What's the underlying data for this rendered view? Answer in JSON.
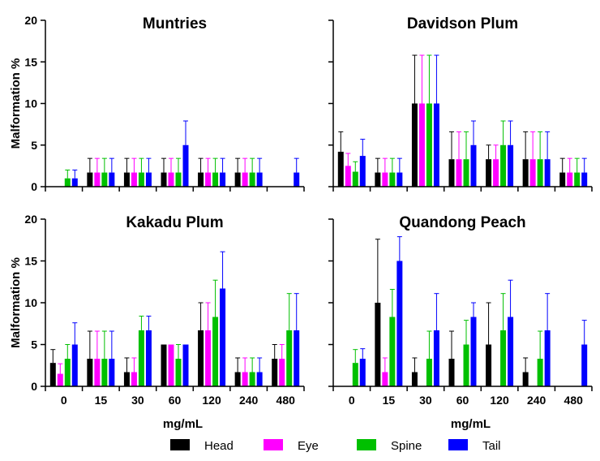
{
  "chart_data": {
    "type": "bar",
    "ylabel": "Malformation %",
    "xlabel": "mg/mL",
    "categories": [
      "0",
      "15",
      "30",
      "60",
      "120",
      "240",
      "480"
    ],
    "ylim": [
      0,
      20
    ],
    "yticks": [
      "0",
      "5",
      "10",
      "15",
      "20"
    ],
    "series_names": [
      "Head",
      "Eye",
      "Spine",
      "Tail"
    ],
    "colors": {
      "Head": "#000000",
      "Eye": "#ff00ff",
      "Spine": "#00c000",
      "Tail": "#0000ff"
    },
    "legend_position": "bottom",
    "panels": [
      {
        "title": "Muntries",
        "series": [
          {
            "name": "Head",
            "values": [
              0,
              1.7,
              1.7,
              1.7,
              1.7,
              1.7,
              0
            ],
            "errors": [
              0,
              1.7,
              1.7,
              1.7,
              1.7,
              1.7,
              0
            ]
          },
          {
            "name": "Eye",
            "values": [
              0,
              1.7,
              1.7,
              1.7,
              1.7,
              1.7,
              0
            ],
            "errors": [
              0,
              1.7,
              1.7,
              1.7,
              1.7,
              1.7,
              0
            ]
          },
          {
            "name": "Spine",
            "values": [
              1.0,
              1.7,
              1.7,
              1.7,
              1.7,
              1.7,
              0
            ],
            "errors": [
              1.0,
              1.7,
              1.7,
              1.7,
              1.7,
              1.7,
              0
            ]
          },
          {
            "name": "Tail",
            "values": [
              1.0,
              1.7,
              1.7,
              5.0,
              1.7,
              1.7,
              1.7
            ],
            "errors": [
              1.0,
              1.7,
              1.7,
              2.9,
              1.7,
              1.7,
              1.7
            ]
          }
        ]
      },
      {
        "title": "Davidson Plum",
        "series": [
          {
            "name": "Head",
            "values": [
              4.2,
              1.7,
              10.0,
              3.3,
              3.3,
              3.3,
              1.7
            ],
            "errors": [
              2.4,
              1.7,
              5.8,
              3.3,
              1.7,
              3.3,
              1.7
            ]
          },
          {
            "name": "Eye",
            "values": [
              2.5,
              1.7,
              10.0,
              3.3,
              3.3,
              3.3,
              1.7
            ],
            "errors": [
              1.5,
              1.7,
              5.8,
              3.3,
              1.7,
              3.3,
              1.7
            ]
          },
          {
            "name": "Spine",
            "values": [
              1.8,
              1.7,
              10.0,
              3.3,
              5.0,
              3.3,
              1.7
            ],
            "errors": [
              1.2,
              1.7,
              5.8,
              3.3,
              2.9,
              3.3,
              1.7
            ]
          },
          {
            "name": "Tail",
            "values": [
              3.7,
              1.7,
              10.0,
              5.0,
              5.0,
              3.3,
              1.7
            ],
            "errors": [
              2.0,
              1.7,
              5.8,
              2.9,
              2.9,
              3.3,
              1.7
            ]
          }
        ]
      },
      {
        "title": "Kakadu Plum",
        "series": [
          {
            "name": "Head",
            "values": [
              2.8,
              3.3,
              1.7,
              5.0,
              6.7,
              1.7,
              3.3
            ],
            "errors": [
              1.6,
              3.3,
              1.7,
              0,
              3.3,
              1.7,
              1.7
            ]
          },
          {
            "name": "Eye",
            "values": [
              1.5,
              3.3,
              1.7,
              5.0,
              6.7,
              1.7,
              3.3
            ],
            "errors": [
              1.2,
              3.3,
              1.7,
              0,
              3.3,
              1.7,
              1.7
            ]
          },
          {
            "name": "Spine",
            "values": [
              3.3,
              3.3,
              6.7,
              3.3,
              8.3,
              1.7,
              6.7
            ],
            "errors": [
              1.7,
              3.3,
              1.7,
              1.7,
              4.4,
              1.7,
              4.4
            ]
          },
          {
            "name": "Tail",
            "values": [
              5.0,
              3.3,
              6.7,
              5.0,
              11.7,
              1.7,
              6.7
            ],
            "errors": [
              2.6,
              3.3,
              1.7,
              0,
              4.4,
              1.7,
              4.4
            ]
          }
        ]
      },
      {
        "title": "Quandong Peach",
        "series": [
          {
            "name": "Head",
            "values": [
              0,
              10.0,
              1.7,
              3.3,
              5.0,
              1.7,
              0
            ],
            "errors": [
              0,
              7.6,
              1.7,
              3.3,
              5.0,
              1.7,
              0
            ]
          },
          {
            "name": "Eye",
            "values": [
              0,
              1.7,
              0,
              0,
              0,
              0,
              0
            ],
            "errors": [
              0,
              1.7,
              0,
              0,
              0,
              0,
              0
            ]
          },
          {
            "name": "Spine",
            "values": [
              2.8,
              8.3,
              3.3,
              5.0,
              6.7,
              3.3,
              0
            ],
            "errors": [
              1.6,
              3.3,
              3.3,
              2.9,
              4.4,
              3.3,
              0
            ]
          },
          {
            "name": "Tail",
            "values": [
              3.3,
              15.0,
              6.7,
              8.3,
              8.3,
              6.7,
              5.0
            ],
            "errors": [
              1.2,
              2.9,
              4.4,
              1.7,
              4.4,
              4.4,
              2.9
            ]
          }
        ]
      }
    ]
  }
}
